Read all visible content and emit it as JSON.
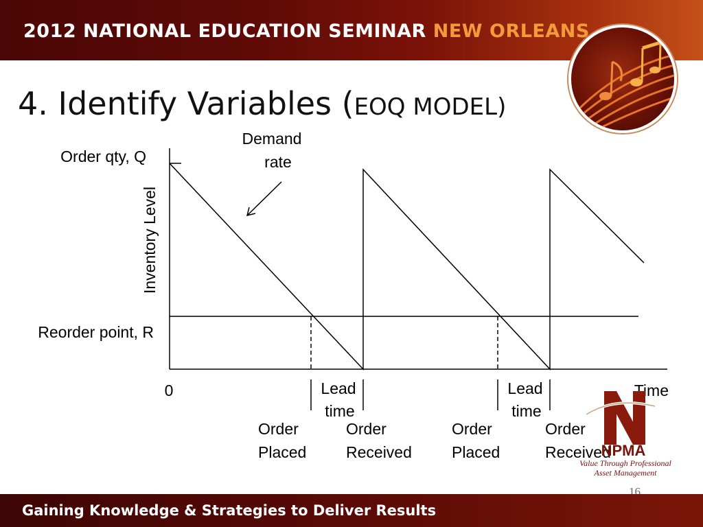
{
  "header": {
    "banner_main": "2012 NATIONAL EDUCATION SEMINAR",
    "banner_accent": "NEW ORLEANS"
  },
  "title": {
    "main": "4. Identify Variables (",
    "sub": "EOQ MODEL)"
  },
  "diagram": {
    "y_axis_label": "Inventory Level",
    "x_axis_label": "Time",
    "origin_label": "0",
    "order_qty_label": "Order qty, Q",
    "reorder_point_label": "Reorder point, R",
    "demand_rate_label": [
      "Demand",
      "rate"
    ],
    "lead_time_label": [
      "Lead",
      "time"
    ],
    "order_placed_label": [
      "Order",
      "Placed"
    ],
    "order_received_label": [
      "Order",
      "Received"
    ]
  },
  "footer": {
    "tagline": "Gaining Knowledge & Strategies to Deliver Results",
    "slide_number": "16"
  },
  "logo": {
    "name": "NPMA",
    "tagline_1": "Value Through Professional",
    "tagline_2": "Asset Management"
  },
  "colors": {
    "banner_dark": "#4a0705",
    "banner_accent": "#f39a3a",
    "brand_red": "#7a1208"
  }
}
